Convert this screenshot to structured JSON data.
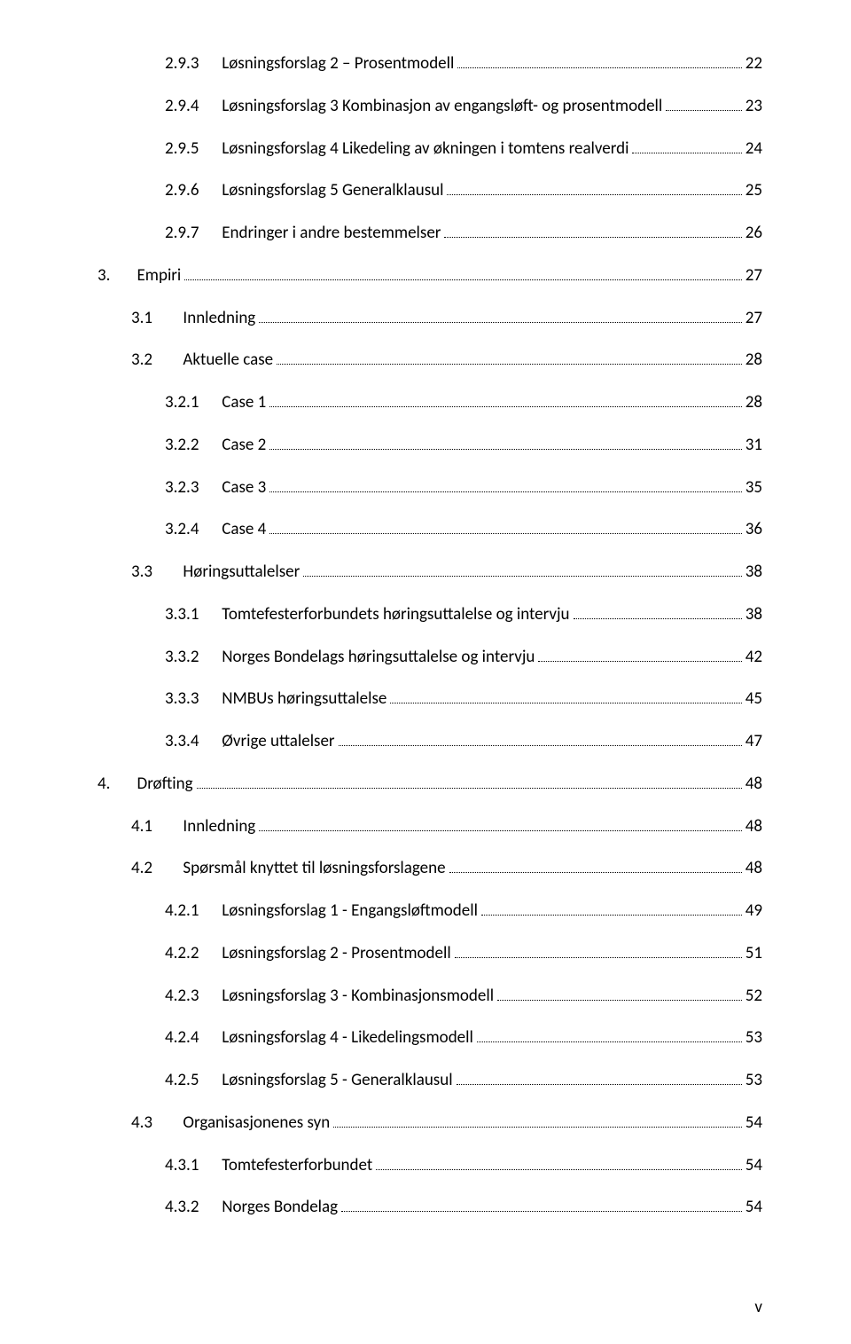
{
  "toc": [
    {
      "level": 3,
      "num": "2.9.3",
      "label": "Løsningsforslag 2 – Prosentmodell",
      "page": "22"
    },
    {
      "level": 3,
      "num": "2.9.4",
      "label": "Løsningsforslag 3 Kombinasjon av engangsløft- og prosentmodell",
      "page": "23"
    },
    {
      "level": 3,
      "num": "2.9.5",
      "label": "Løsningsforslag 4 Likedeling av økningen i tomtens realverdi",
      "page": "24"
    },
    {
      "level": 3,
      "num": "2.9.6",
      "label": "Løsningsforslag 5 Generalklausul",
      "page": "25"
    },
    {
      "level": 3,
      "num": "2.9.7",
      "label": "Endringer i andre bestemmelser",
      "page": "26"
    },
    {
      "level": 1,
      "num": "3.",
      "label": "Empiri",
      "page": "27"
    },
    {
      "level": 2,
      "num": "3.1",
      "label": "Innledning",
      "page": "27"
    },
    {
      "level": 2,
      "num": "3.2",
      "label": "Aktuelle case",
      "page": "28"
    },
    {
      "level": 3,
      "num": "3.2.1",
      "label": "Case 1",
      "page": "28"
    },
    {
      "level": 3,
      "num": "3.2.2",
      "label": "Case 2",
      "page": "31"
    },
    {
      "level": 3,
      "num": "3.2.3",
      "label": "Case 3",
      "page": "35"
    },
    {
      "level": 3,
      "num": "3.2.4",
      "label": "Case 4",
      "page": "36"
    },
    {
      "level": 2,
      "num": "3.3",
      "label": "Høringsuttalelser",
      "page": "38"
    },
    {
      "level": 3,
      "num": "3.3.1",
      "label": "Tomtefesterforbundets høringsuttalelse og intervju",
      "page": "38"
    },
    {
      "level": 3,
      "num": "3.3.2",
      "label": "Norges Bondelags høringsuttalelse og intervju",
      "page": "42"
    },
    {
      "level": 3,
      "num": "3.3.3",
      "label": "NMBUs høringsuttalelse",
      "page": "45"
    },
    {
      "level": 3,
      "num": "3.3.4",
      "label": "Øvrige uttalelser",
      "page": "47"
    },
    {
      "level": 1,
      "num": "4.",
      "label": "Drøfting",
      "page": "48"
    },
    {
      "level": 2,
      "num": "4.1",
      "label": "Innledning",
      "page": "48"
    },
    {
      "level": 2,
      "num": "4.2",
      "label": "Spørsmål knyttet til løsningsforslagene",
      "page": "48"
    },
    {
      "level": 3,
      "num": "4.2.1",
      "label": "Løsningsforslag 1 - Engangsløftmodell",
      "page": "49"
    },
    {
      "level": 3,
      "num": "4.2.2",
      "label": "Løsningsforslag 2 - Prosentmodell",
      "page": "51"
    },
    {
      "level": 3,
      "num": "4.2.3",
      "label": "Løsningsforslag 3 - Kombinasjonsmodell",
      "page": "52"
    },
    {
      "level": 3,
      "num": "4.2.4",
      "label": "Løsningsforslag 4 - Likedelingsmodell",
      "page": "53"
    },
    {
      "level": 3,
      "num": "4.2.5",
      "label": "Løsningsforslag 5 - Generalklausul",
      "page": "53"
    },
    {
      "level": 2,
      "num": "4.3",
      "label": "Organisasjonenes syn",
      "page": "54"
    },
    {
      "level": 3,
      "num": "4.3.1",
      "label": "Tomtefesterforbundet",
      "page": "54"
    },
    {
      "level": 3,
      "num": "4.3.2",
      "label": "Norges Bondelag",
      "page": "54"
    }
  ],
  "numGap": {
    "1": "       ",
    "2": "        ",
    "3": "      "
  },
  "pageNumber": "v",
  "style": {
    "fontFamily": "Calibri, 'Segoe UI', Arial, sans-serif",
    "fontSizePx": 19,
    "textColor": "#000000",
    "backgroundColor": "#ffffff",
    "leaderColor": "#000000",
    "pageWidth": 960,
    "pageHeight": 1515,
    "indentPxPerLevel": 38,
    "lineSpacingPx": 24
  }
}
